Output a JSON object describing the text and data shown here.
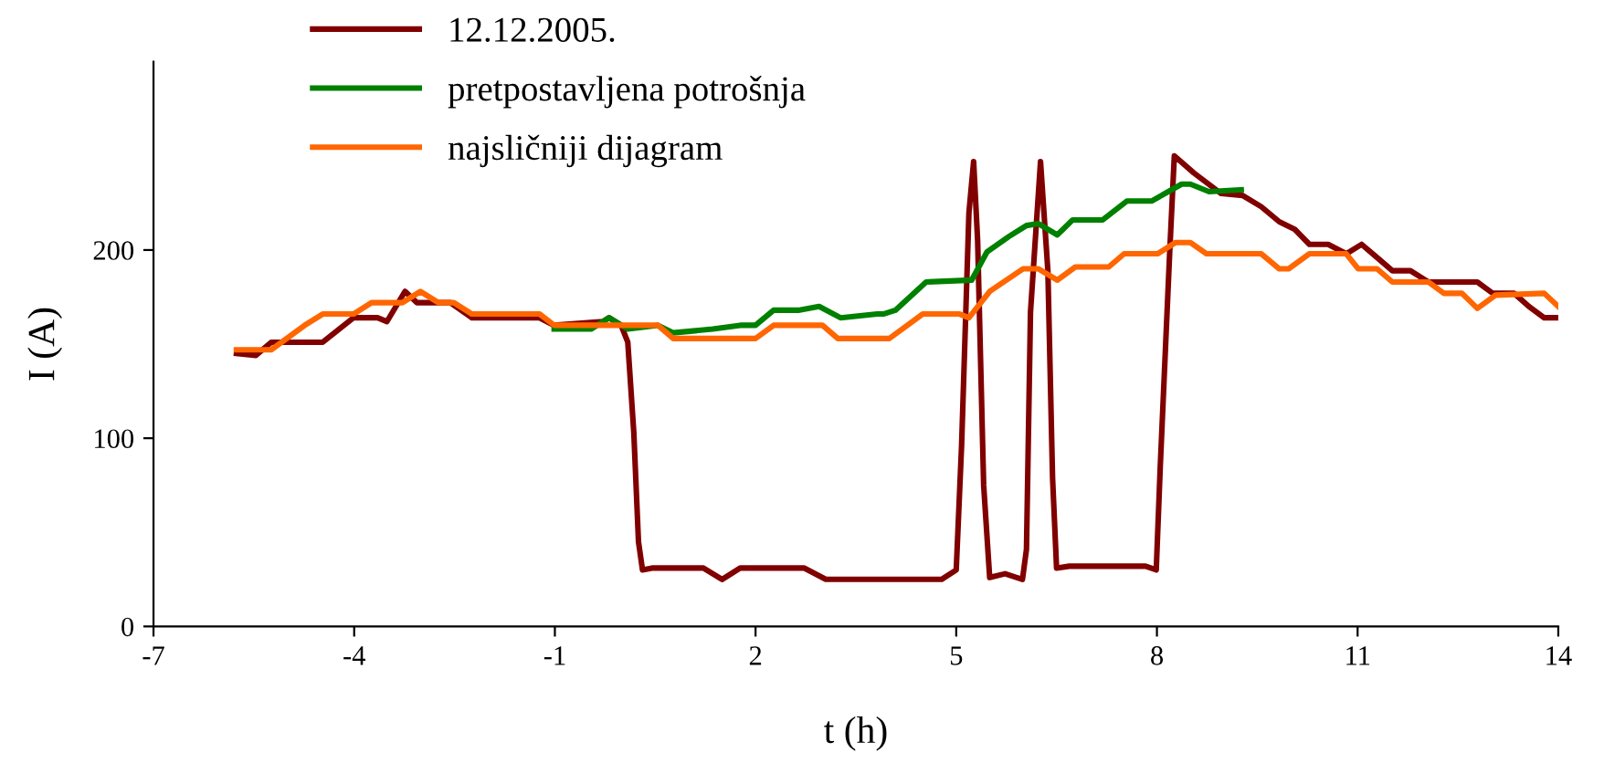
{
  "chart_data": {
    "type": "line",
    "xlabel": "t (h)",
    "ylabel": "I (A)",
    "xlim": [
      -7,
      14
    ],
    "xticks": [
      -7,
      -4,
      -1,
      2,
      5,
      8,
      11,
      14
    ],
    "ylim": [
      0,
      300
    ],
    "yticks": [
      0,
      100,
      200
    ],
    "grid": false,
    "legend": "top",
    "marker": "none",
    "line_style": "solid",
    "series": [
      {
        "name": "12.12.2005.",
        "color": "#800000",
        "x": [
          -5.76,
          -5.47,
          -5.24,
          -4.47,
          -4.01,
          -3.65,
          -3.51,
          -3.24,
          -3.06,
          -2.56,
          -2.24,
          -1.23,
          -1.01,
          -0.28,
          -0.19,
          -0.01,
          0.09,
          0.18,
          0.25,
          0.31,
          0.45,
          1.22,
          1.5,
          1.77,
          2.73,
          3.05,
          3.55,
          4.78,
          5.0,
          5.08,
          5.19,
          5.26,
          5.32,
          5.41,
          5.5,
          5.73,
          5.99,
          6.05,
          6.11,
          6.26,
          6.37,
          6.44,
          6.5,
          6.69,
          7.83,
          7.99,
          8.05,
          8.19,
          8.26,
          8.55,
          8.96,
          9.28,
          9.56,
          9.83,
          10.06,
          10.28,
          10.56,
          10.83,
          11.06,
          11.29,
          11.52,
          11.79,
          12.06,
          12.79,
          13.02,
          13.34,
          13.56,
          13.79,
          14.0
        ],
        "values": [
          145,
          144,
          151,
          151,
          164,
          164,
          162,
          178,
          172,
          172,
          164,
          164,
          160,
          162,
          164,
          160,
          151,
          103,
          45,
          30,
          31,
          31,
          25,
          31,
          31,
          25,
          25,
          25,
          30,
          96,
          220,
          247,
          205,
          75,
          26,
          28,
          25,
          41,
          167,
          247,
          189,
          79,
          31,
          32,
          32,
          30,
          85,
          198,
          250,
          241,
          230,
          229,
          223,
          215,
          211,
          203,
          203,
          198,
          203,
          196,
          189,
          189,
          183,
          183,
          177,
          177,
          170,
          164,
          164
        ]
      },
      {
        "name": "pretpostavljena potrošnja",
        "color": "#008000",
        "x": [
          -1.01,
          -0.46,
          -0.19,
          0.09,
          0.54,
          0.77,
          1.36,
          1.77,
          2.0,
          2.27,
          2.64,
          2.95,
          3.27,
          3.82,
          3.91,
          4.09,
          4.55,
          5.23,
          5.46,
          5.78,
          6.05,
          6.23,
          6.51,
          6.74,
          7.19,
          7.55,
          7.92,
          8.37,
          8.5,
          8.78,
          9.26
        ],
        "values": [
          158,
          158,
          164,
          158,
          160,
          156,
          158,
          160,
          160,
          168,
          168,
          170,
          164,
          166,
          166,
          168,
          183,
          184,
          199,
          207,
          213,
          214,
          208,
          216,
          216,
          226,
          226,
          235,
          235,
          231,
          232
        ]
      },
      {
        "name": "najsličniji dijagram",
        "color": "#ff6600",
        "x": [
          -5.76,
          -5.24,
          -4.74,
          -4.47,
          -4.01,
          -3.74,
          -3.28,
          -3.01,
          -2.74,
          -2.51,
          -2.24,
          -1.23,
          -1.01,
          0.54,
          0.77,
          2.0,
          2.27,
          3.0,
          3.23,
          4.0,
          4.5,
          5.05,
          5.19,
          5.5,
          6.0,
          6.23,
          6.51,
          6.78,
          7.28,
          7.51,
          8.01,
          8.28,
          8.5,
          8.74,
          9.56,
          9.83,
          9.97,
          10.28,
          10.83,
          11.01,
          11.29,
          11.52,
          12.06,
          12.29,
          12.56,
          12.79,
          13.06,
          13.79,
          14.0
        ],
        "values": [
          147,
          147,
          160,
          166,
          166,
          172,
          172,
          178,
          172,
          172,
          166,
          166,
          160,
          160,
          153,
          153,
          160,
          160,
          153,
          153,
          166,
          166,
          164,
          178,
          190,
          190,
          184,
          191,
          191,
          198,
          198,
          204,
          204,
          198,
          198,
          190,
          190,
          198,
          198,
          190,
          190,
          183,
          183,
          177,
          177,
          169,
          176,
          177,
          170
        ]
      }
    ]
  }
}
